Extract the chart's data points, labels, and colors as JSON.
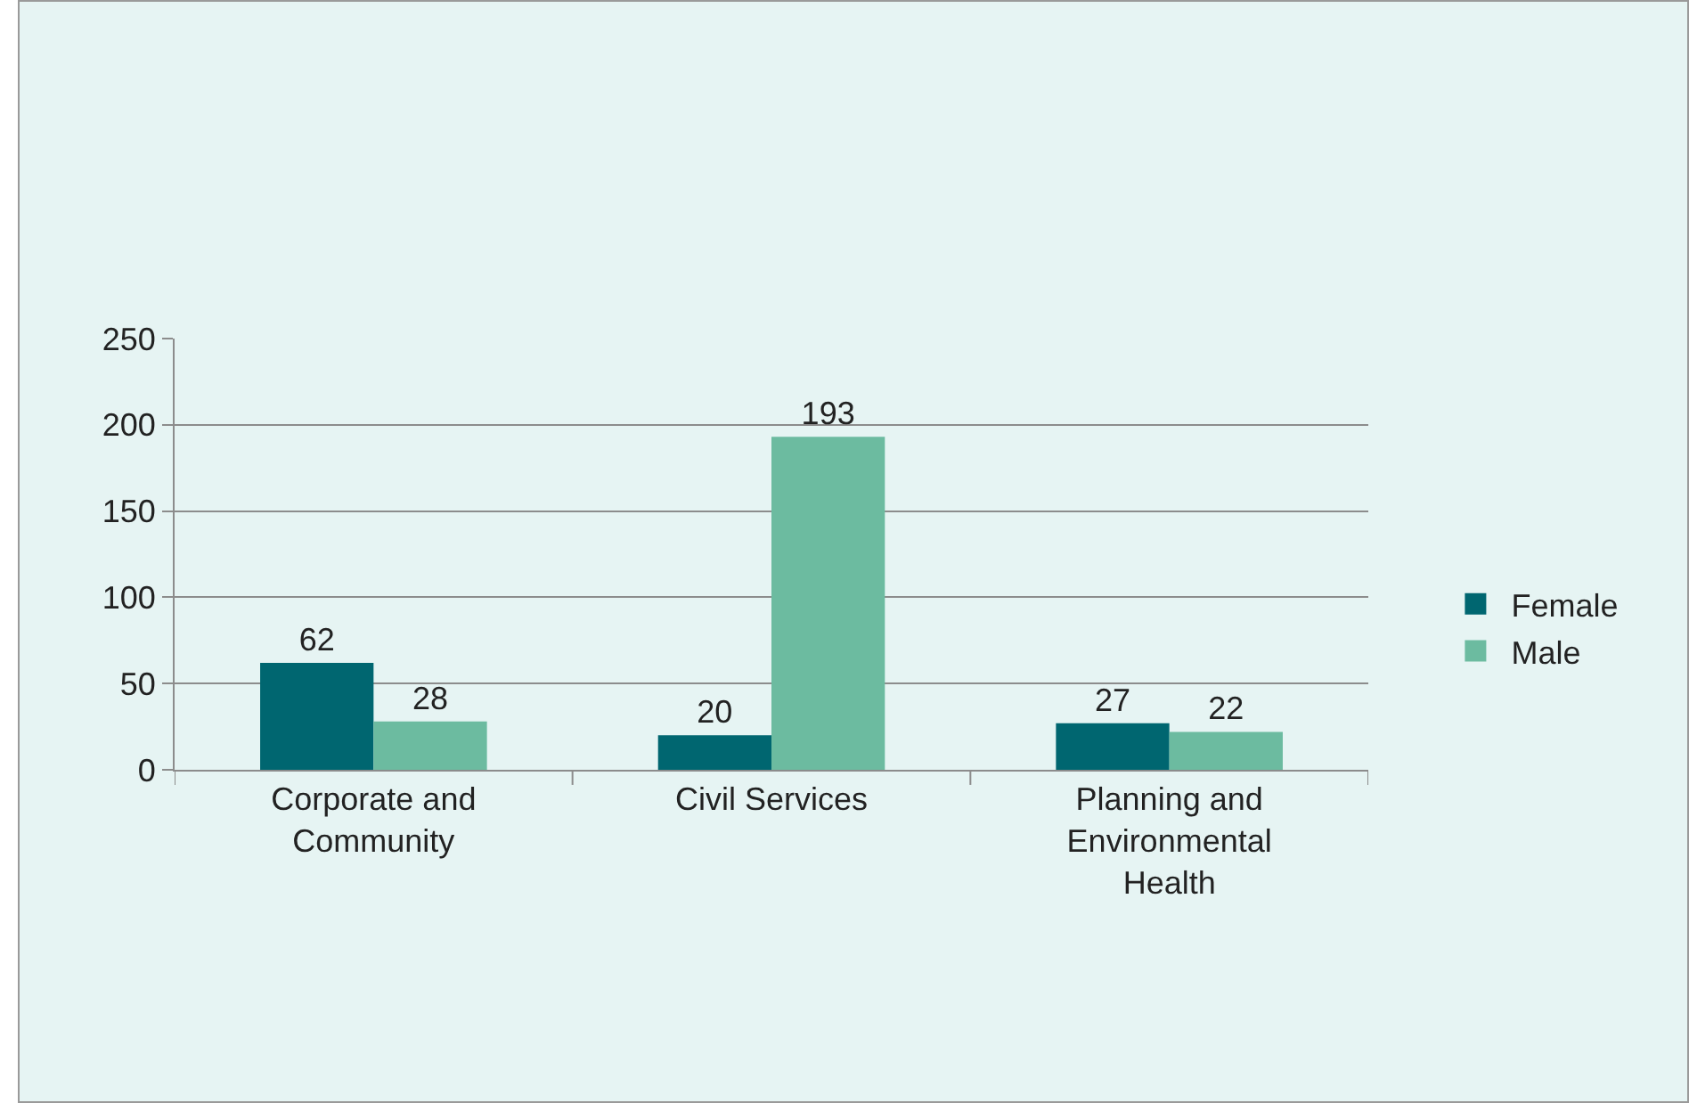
{
  "chart_data": {
    "type": "bar",
    "categories": [
      "Corporate and Community",
      "Civil Services",
      "Planning and Environmental Health"
    ],
    "series": [
      {
        "name": "Female",
        "color": "#006670",
        "values": [
          62,
          20,
          27
        ]
      },
      {
        "name": "Male",
        "color": "#6cbba0",
        "values": [
          28,
          193,
          22
        ]
      }
    ],
    "ylim": [
      0,
      250
    ],
    "yticks": [
      0,
      50,
      100,
      150,
      200,
      250
    ],
    "grid": "y",
    "legend": "right",
    "data_labels": true
  }
}
